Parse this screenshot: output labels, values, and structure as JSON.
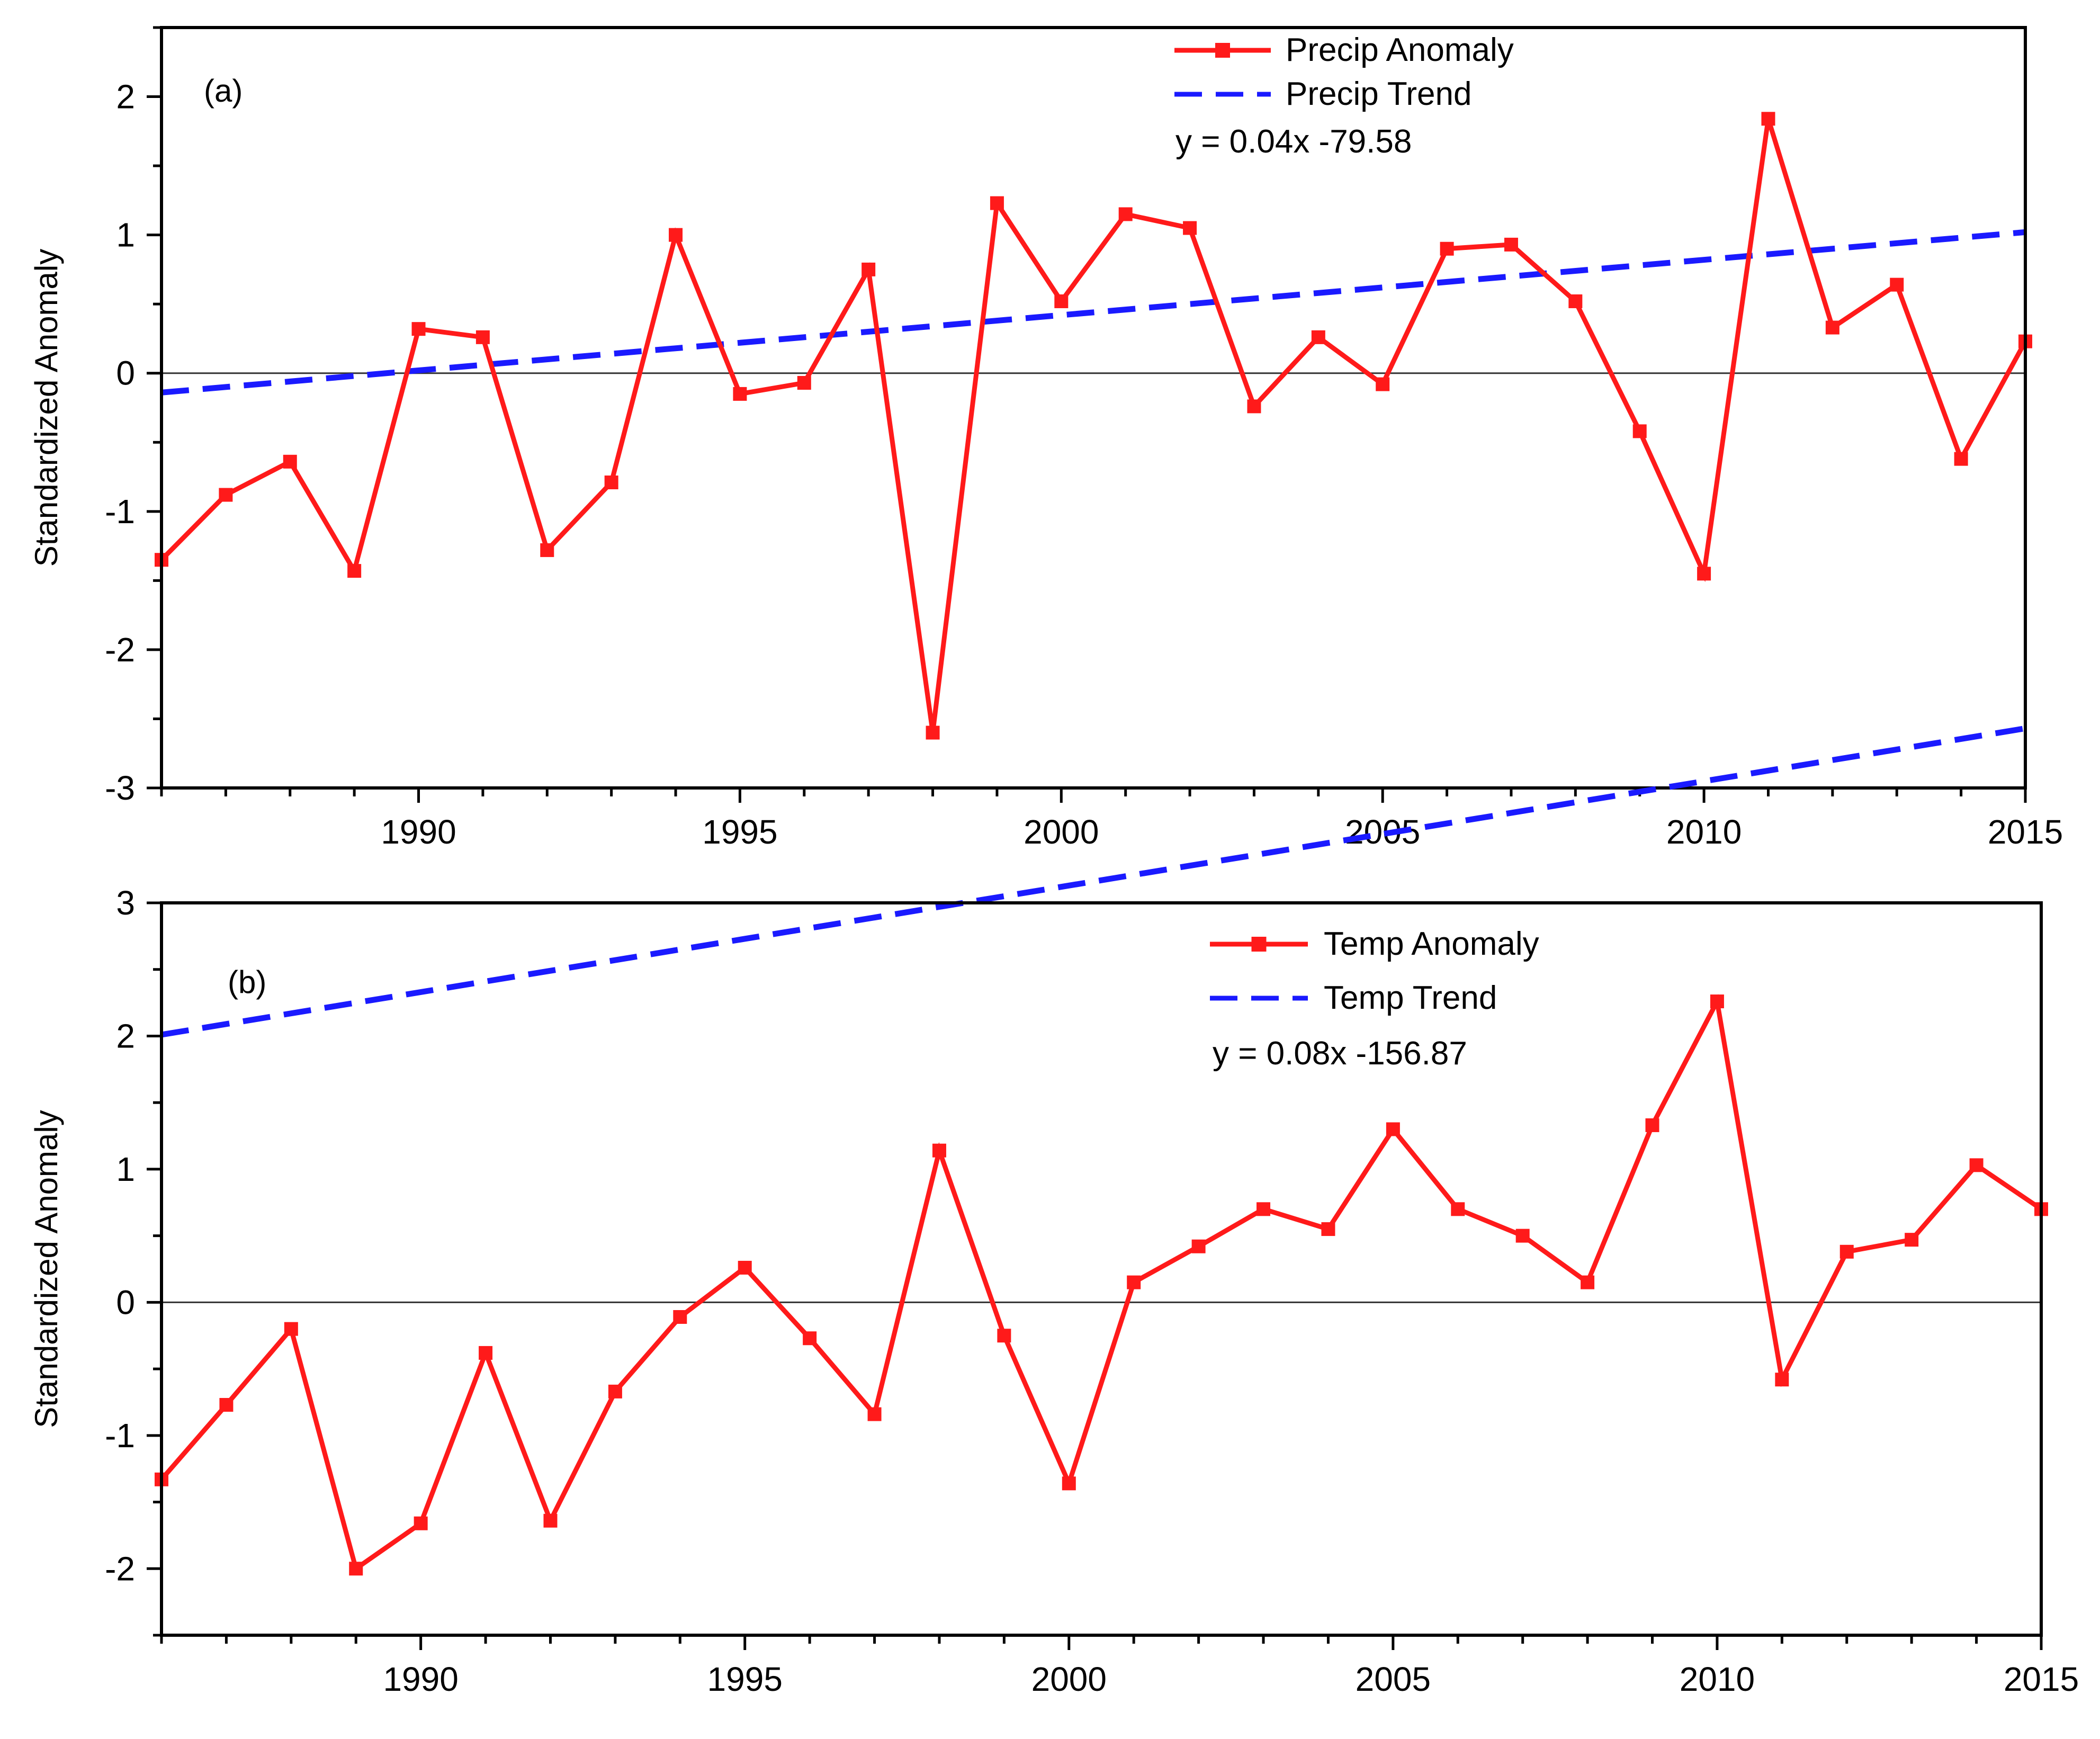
{
  "chart_data": [
    {
      "type": "line",
      "panel_label": "(a)",
      "ylabel": "Standardized Anomaly",
      "xlabel": "",
      "xlim": [
        1986,
        2015
      ],
      "ylim": [
        -3,
        2.5
      ],
      "xticks": [
        1990,
        1995,
        2000,
        2005,
        2010,
        2015
      ],
      "yticks": [
        -3,
        -2,
        -1,
        0,
        1,
        2
      ],
      "zero_line": true,
      "legend_position": "top-right",
      "x": [
        1986,
        1987,
        1988,
        1989,
        1990,
        1991,
        1992,
        1993,
        1994,
        1995,
        1996,
        1997,
        1998,
        1999,
        2000,
        2001,
        2002,
        2003,
        2004,
        2005,
        2006,
        2007,
        2008,
        2009,
        2010,
        2011,
        2012,
        2013,
        2014,
        2015
      ],
      "series": [
        {
          "name": "Precip Anomaly",
          "style": "line-square-markers",
          "color": "#ff1a1a",
          "values": [
            -1.35,
            -0.88,
            -0.64,
            -1.43,
            0.32,
            0.26,
            -1.28,
            -0.79,
            1.0,
            -0.15,
            -0.07,
            0.75,
            -2.6,
            1.23,
            0.52,
            1.15,
            1.05,
            -0.24,
            0.26,
            -0.08,
            0.9,
            0.93,
            0.52,
            -0.42,
            -1.45,
            1.84,
            0.33,
            0.64,
            -0.62,
            0.23
          ]
        },
        {
          "name": "Precip Trend",
          "style": "dashed",
          "color": "#1a1aff",
          "trend": {
            "slope": 0.04,
            "intercept": -79.58,
            "x_start": 1986,
            "x_end": 2015
          }
        }
      ],
      "equation": "y = 0.04x -79.58"
    },
    {
      "type": "line",
      "panel_label": "(b)",
      "ylabel": "Standardized Anomaly",
      "xlabel": "",
      "xlim": [
        1986,
        2015
      ],
      "ylim": [
        -2.5,
        3
      ],
      "xticks": [
        1990,
        1995,
        2000,
        2005,
        2010,
        2015
      ],
      "yticks": [
        -2,
        -1,
        0,
        1,
        2,
        3
      ],
      "zero_line": true,
      "legend_position": "top-right",
      "x": [
        1986,
        1987,
        1988,
        1989,
        1990,
        1991,
        1992,
        1993,
        1994,
        1995,
        1996,
        1997,
        1998,
        1999,
        2000,
        2001,
        2002,
        2003,
        2004,
        2005,
        2006,
        2007,
        2008,
        2009,
        2010,
        2011,
        2012,
        2013,
        2014,
        2015
      ],
      "series": [
        {
          "name": "Temp Anomaly",
          "style": "line-square-markers",
          "color": "#ff1a1a",
          "values": [
            -1.33,
            -0.77,
            -0.2,
            -2.0,
            -1.66,
            -0.38,
            -1.64,
            -0.67,
            -0.11,
            0.26,
            -0.27,
            -0.84,
            1.14,
            -0.25,
            -1.36,
            0.15,
            0.42,
            0.7,
            0.55,
            1.3,
            0.7,
            0.5,
            0.15,
            1.33,
            2.26,
            -0.58,
            0.38,
            0.47,
            1.03,
            0.7
          ]
        },
        {
          "name": "Temp Trend",
          "style": "dashed",
          "color": "#1a1aff",
          "trend": {
            "slope": 0.08,
            "intercept": -156.87,
            "x_start": 1986,
            "x_end": 2014.8
          }
        }
      ],
      "equation": "y = 0.08x -156.87"
    }
  ]
}
